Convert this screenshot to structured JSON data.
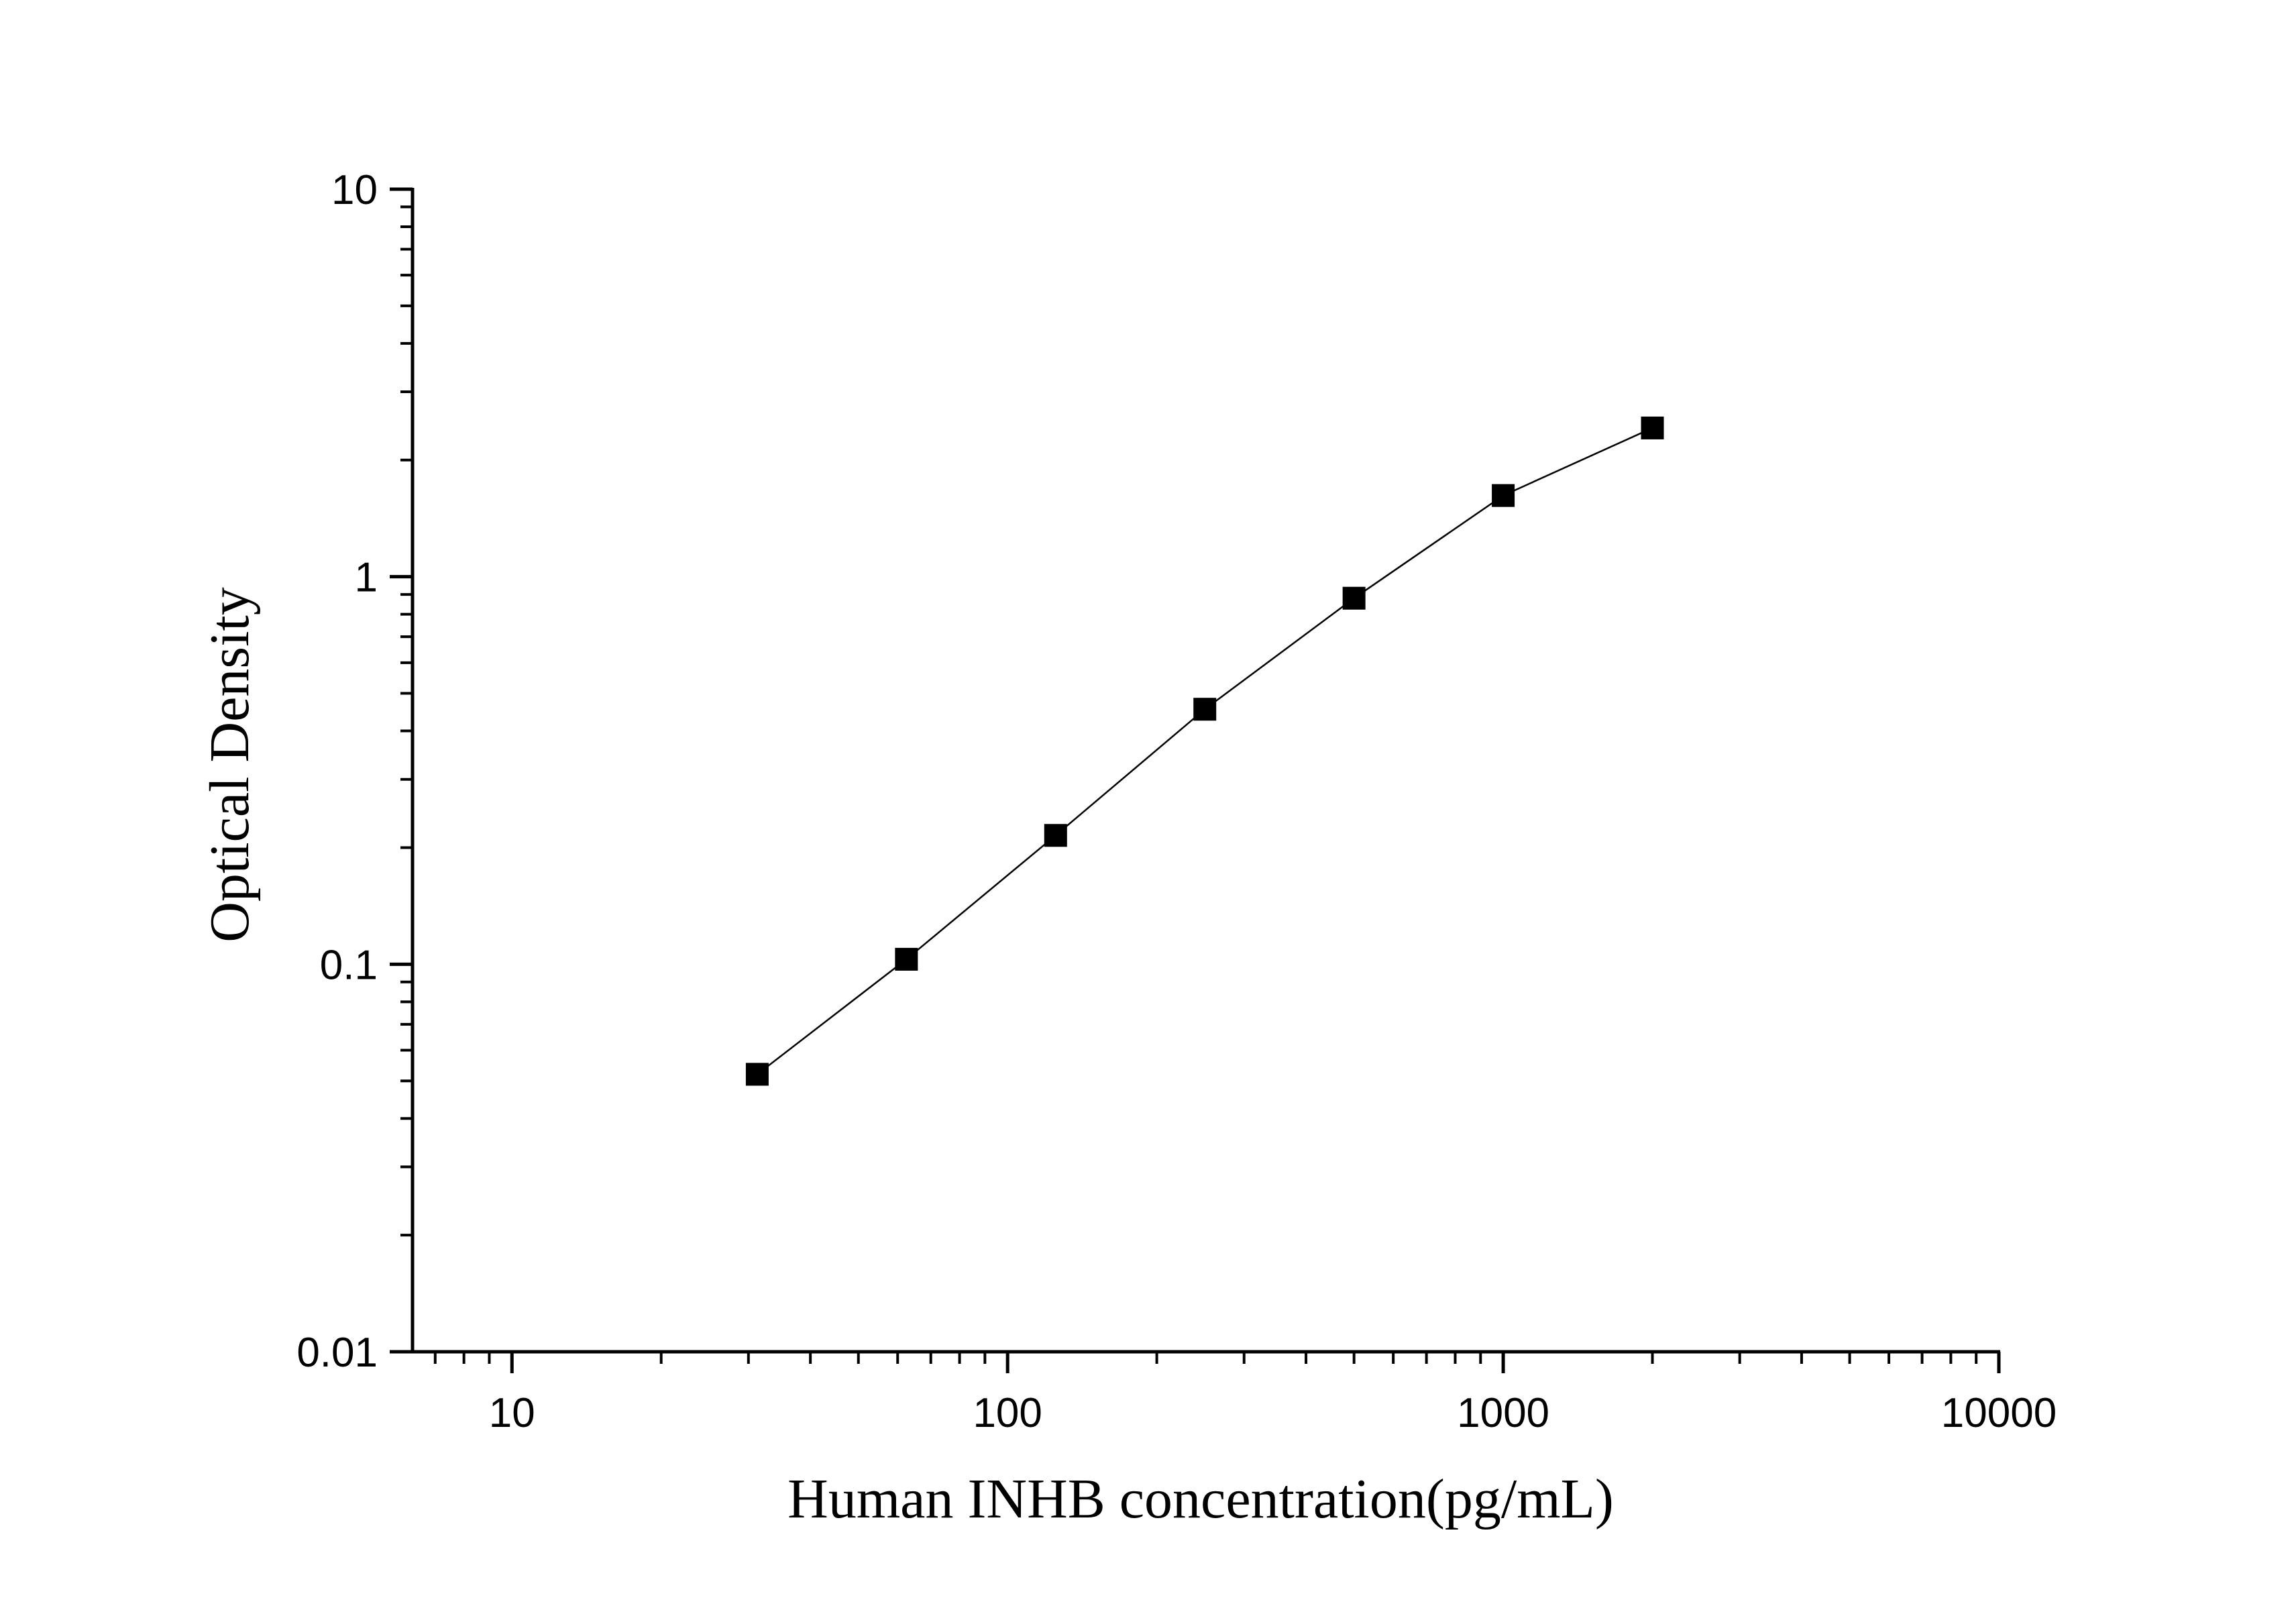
{
  "chart_data": {
    "type": "line",
    "title": "",
    "xlabel": "Human INHB concentration(pg/mL)",
    "ylabel": "Optical Density",
    "x_scale": "log",
    "y_scale": "log",
    "xlim": [
      6.3,
      10000
    ],
    "ylim": [
      0.01,
      10
    ],
    "x_ticks": [
      10,
      100,
      1000,
      10000
    ],
    "x_tick_labels": [
      "10",
      "100",
      "1000",
      "10000"
    ],
    "y_ticks": [
      0.01,
      0.1,
      1,
      10
    ],
    "y_tick_labels": [
      "0.01",
      "0.1",
      "1",
      "10"
    ],
    "grid": false,
    "legend": "none",
    "marker": "square",
    "color": "#000000",
    "series": [
      {
        "x": [
          31.25,
          62.5,
          125,
          250,
          500,
          1000,
          2000
        ],
        "y": [
          0.052,
          0.103,
          0.215,
          0.455,
          0.88,
          1.62,
          2.42
        ]
      }
    ]
  }
}
